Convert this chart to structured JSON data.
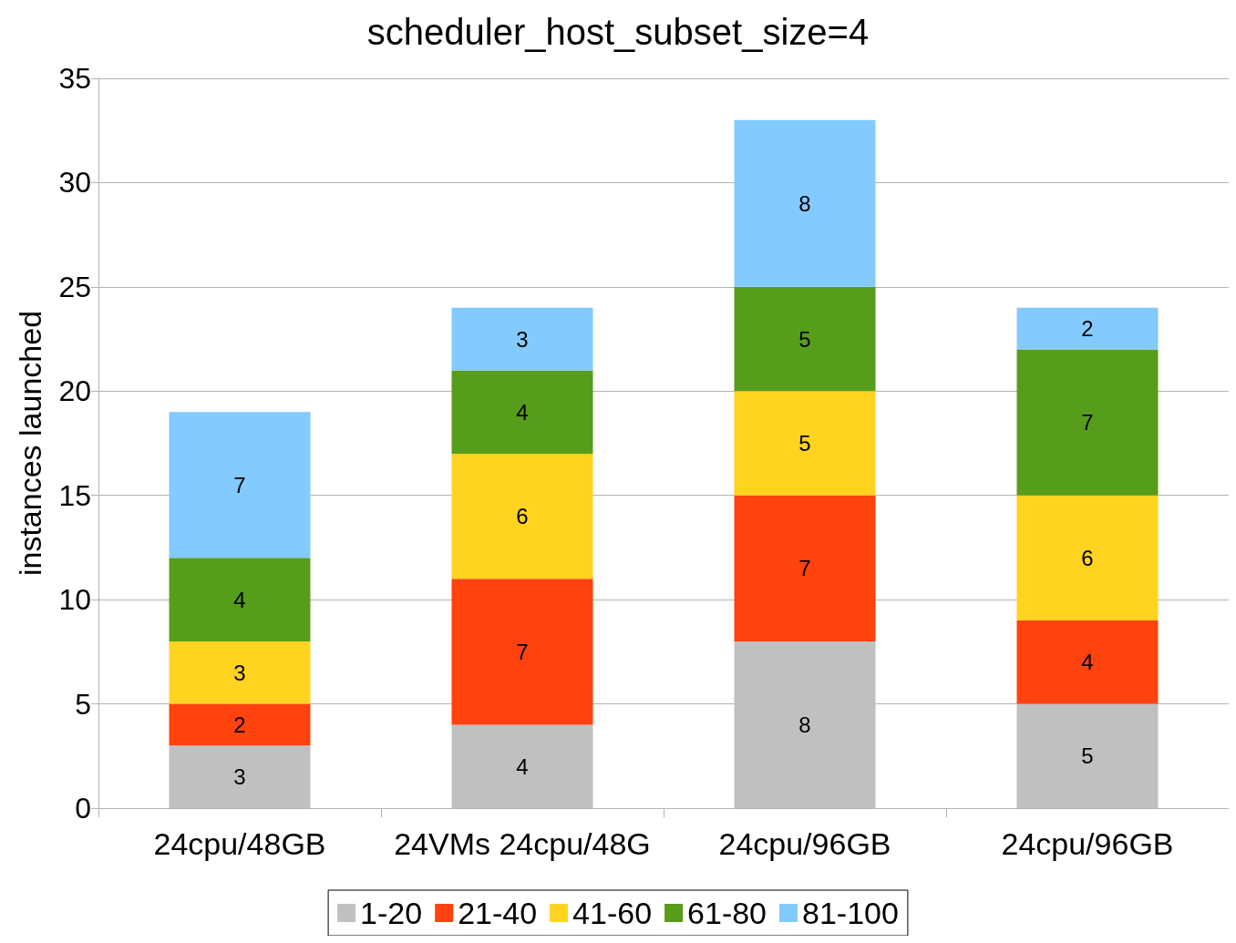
{
  "chart_data": {
    "type": "bar",
    "title": "scheduler_host_subset_size=4",
    "ylabel": "instances launched",
    "categories": [
      "24cpu/48GB",
      "24VMs 24cpu/48G",
      "24cpu/96GB",
      "24cpu/96GB"
    ],
    "stacked": true,
    "data_labels": true,
    "grid": "y",
    "legend": "bottom",
    "ylim": [
      0,
      35
    ],
    "yticks": [
      0,
      5,
      10,
      15,
      20,
      25,
      30,
      35
    ],
    "series": [
      {
        "name": "1-20",
        "color": "#c0c0c0",
        "values": [
          3,
          4,
          8,
          5
        ]
      },
      {
        "name": "21-40",
        "color": "#ff420e",
        "values": [
          2,
          7,
          7,
          4
        ]
      },
      {
        "name": "41-60",
        "color": "#ffd320",
        "values": [
          3,
          6,
          5,
          6
        ]
      },
      {
        "name": "61-80",
        "color": "#579d1c",
        "values": [
          4,
          4,
          5,
          7
        ]
      },
      {
        "name": "81-100",
        "color": "#83caff",
        "values": [
          7,
          3,
          8,
          2
        ]
      }
    ]
  }
}
